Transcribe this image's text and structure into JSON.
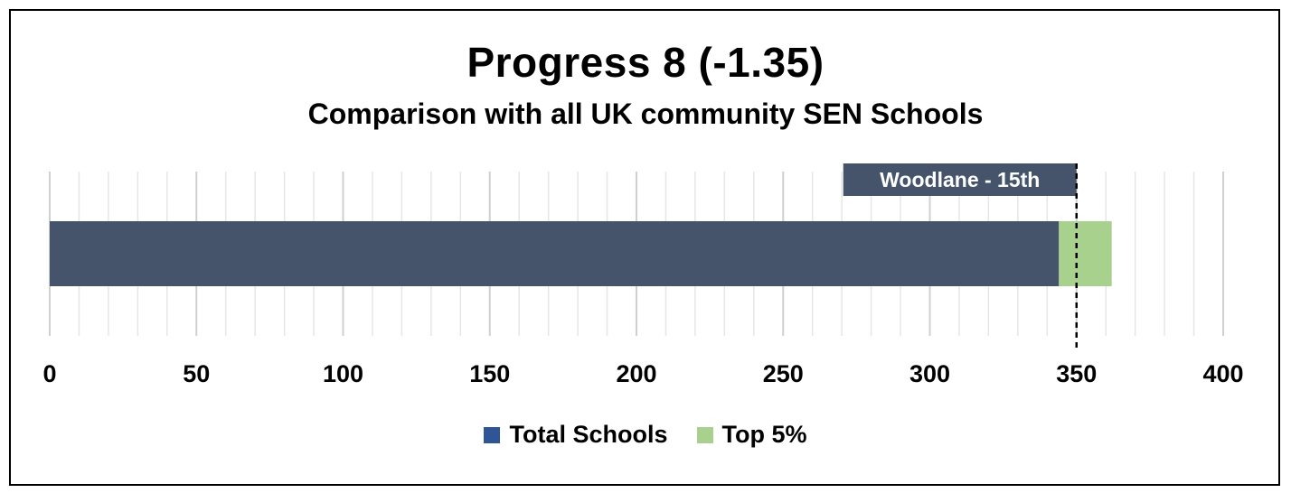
{
  "chart_data": {
    "type": "bar",
    "orientation": "horizontal",
    "stacked": true,
    "title": "Progress 8 (-1.35)",
    "subtitle": "Comparison with all UK community SEN Schools",
    "xlim": [
      0,
      400
    ],
    "x_ticks": [
      0,
      50,
      100,
      150,
      200,
      250,
      300,
      350,
      400
    ],
    "x_tick_labels": [
      "0",
      "50",
      "100",
      "150",
      "200",
      "250",
      "300",
      "350",
      "400"
    ],
    "grid": "vertical",
    "series": [
      {
        "name": "Total Schools",
        "values": [
          344
        ],
        "color": "#45546b"
      },
      {
        "name": "Top 5%",
        "values": [
          18
        ],
        "color": "#a9d18e"
      }
    ],
    "reference_line": {
      "value": 350,
      "style": "dashed"
    },
    "annotation": {
      "text": "Woodlane - 15th",
      "anchor_value": 350,
      "color": "#45546b"
    },
    "legend": {
      "position": "bottom",
      "items": [
        {
          "label": "Total Schools",
          "color": "#2f5597"
        },
        {
          "label": "Top 5%",
          "color": "#a9d18e"
        }
      ]
    }
  }
}
